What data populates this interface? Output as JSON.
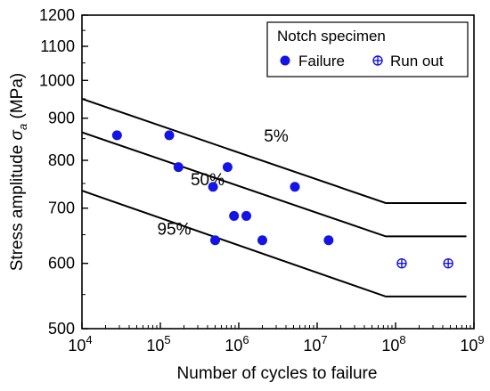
{
  "chart_data": {
    "type": "scatter",
    "xscale": "log",
    "yscale": "log",
    "xlabel": "Number of cycles to failure",
    "ylabel_prefix": "Stress amplitude ",
    "ylabel_symbol": "σ",
    "ylabel_subscript": "a",
    "ylabel_suffix": " (MPa)",
    "xlim": [
      10000,
      1000000000
    ],
    "ylim": [
      500,
      1200
    ],
    "x_ticks": [
      {
        "value": 10000,
        "base": "10",
        "exp": "4"
      },
      {
        "value": 100000,
        "base": "10",
        "exp": "5"
      },
      {
        "value": 1000000,
        "base": "10",
        "exp": "6"
      },
      {
        "value": 10000000,
        "base": "10",
        "exp": "7"
      },
      {
        "value": 100000000,
        "base": "10",
        "exp": "8"
      },
      {
        "value": 1000000000,
        "base": "10",
        "exp": "9"
      }
    ],
    "y_ticks": [
      {
        "value": 500,
        "label": "500"
      },
      {
        "value": 600,
        "label": "600"
      },
      {
        "value": 700,
        "label": "700"
      },
      {
        "value": 800,
        "label": "800"
      },
      {
        "value": 900,
        "label": "900"
      },
      {
        "value": 1000,
        "label": "1000"
      },
      {
        "value": 1100,
        "label": "1100"
      },
      {
        "value": 1200,
        "label": "1200"
      }
    ],
    "legend": {
      "title": "Notch specimen",
      "position": "top-right",
      "entries": [
        {
          "name": "Failure",
          "marker": "filled-circle"
        },
        {
          "name": "Run out",
          "marker": "crossed-circle"
        }
      ]
    },
    "colors": {
      "marker": "#1414e6",
      "line": "#000000",
      "axis": "#000000"
    },
    "series": [
      {
        "name": "Failure",
        "points": [
          {
            "x": 28000,
            "y": 858
          },
          {
            "x": 130000,
            "y": 858
          },
          {
            "x": 170000,
            "y": 785
          },
          {
            "x": 470000,
            "y": 743
          },
          {
            "x": 720000,
            "y": 785
          },
          {
            "x": 870000,
            "y": 685
          },
          {
            "x": 1250000,
            "y": 685
          },
          {
            "x": 5200000,
            "y": 743
          },
          {
            "x": 500000,
            "y": 640
          },
          {
            "x": 2000000,
            "y": 640
          },
          {
            "x": 14000000,
            "y": 640
          }
        ]
      },
      {
        "name": "Run out",
        "points": [
          {
            "x": 120000000,
            "y": 600
          },
          {
            "x": 470000000,
            "y": 600
          }
        ]
      }
    ],
    "curves": [
      {
        "label": "5%",
        "points": [
          [
            10000,
            950
          ],
          [
            75000000,
            710
          ],
          [
            800000000,
            710
          ]
        ],
        "label_at": {
          "x": 3000000,
          "y": 843
        }
      },
      {
        "label": "50%",
        "points": [
          [
            10000,
            865
          ],
          [
            75000000,
            647
          ],
          [
            800000000,
            647
          ]
        ],
        "label_at": {
          "x": 400000,
          "y": 746
        }
      },
      {
        "label": "95%",
        "points": [
          [
            10000,
            735
          ],
          [
            75000000,
            547
          ],
          [
            800000000,
            547
          ]
        ],
        "label_at": {
          "x": 150000,
          "y": 650
        }
      }
    ]
  }
}
